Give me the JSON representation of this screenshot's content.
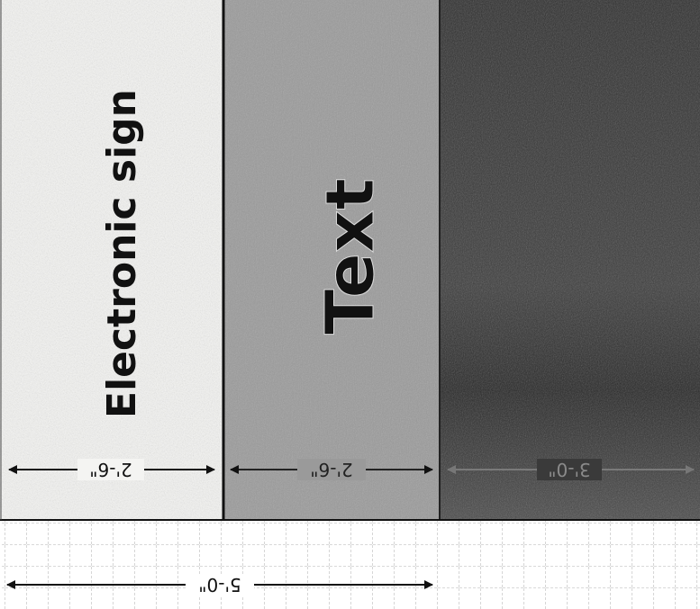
{
  "panels": [
    {
      "id": "white",
      "label": "Electronic sign",
      "dimension": "2'-6\""
    },
    {
      "id": "gray",
      "label": "Text",
      "dimension": "2'-6\""
    },
    {
      "id": "dark",
      "label": "",
      "dimension": "3'-0\""
    }
  ],
  "total_dimension": "5'-0\"",
  "colors": {
    "white_panel": "#f4f4f2",
    "gray_panel": "#9a9a9a",
    "dark_panel": "#3a3a3a",
    "ink": "#111111"
  }
}
